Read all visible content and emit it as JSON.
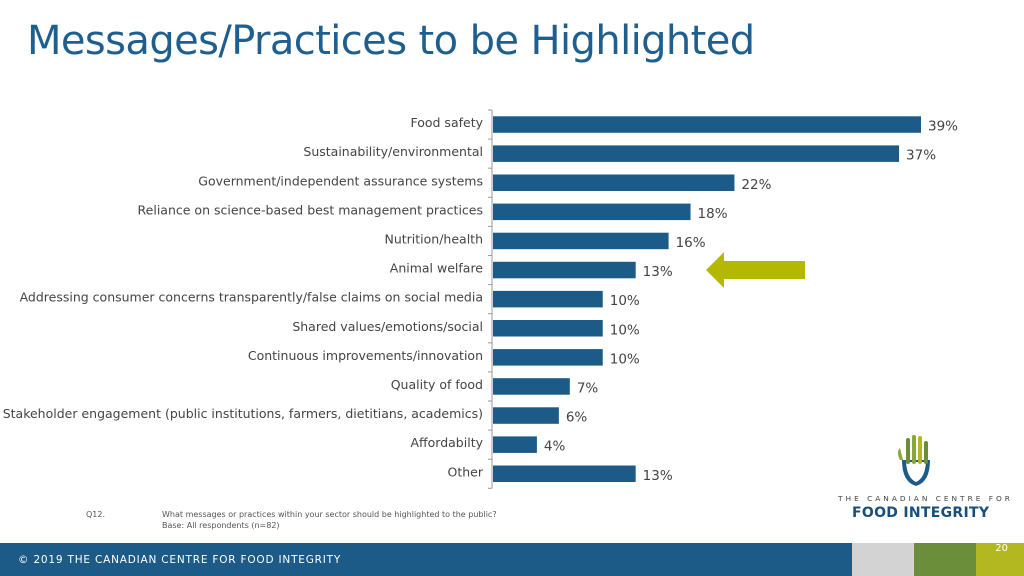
{
  "slide": {
    "title": "Messages/Practices to be Highlighted",
    "footnote": {
      "question_id": "Q12.",
      "question": "What messages or practices within your sector should be highlighted to the public?",
      "base": "Base: All respondents  (n=82)"
    },
    "footer_text": "© 2019 THE CANADIAN CENTRE FOR FOOD INTEGRITY",
    "page_number": "20",
    "logo": {
      "line1": "THE CANADIAN CENTRE FOR",
      "line2": "FOOD INTEGRITY"
    },
    "colors": {
      "bar": "#1c5a88",
      "title": "#1f5f8f",
      "arrow": "#b5b800",
      "footer": "#1c5a88",
      "band_light": "#d3d3d3",
      "band_green": "#6b8e3a",
      "band_lime": "#b4b820"
    }
  },
  "chart_data": {
    "type": "bar",
    "orientation": "horizontal",
    "title": "",
    "xlabel": "",
    "ylabel": "",
    "xlim": [
      0,
      40
    ],
    "grid": false,
    "legend": "none",
    "unit": "%",
    "categories": [
      "Food safety",
      "Sustainability/environmental",
      "Government/independent assurance systems",
      "Reliance on science-based best management practices",
      "Nutrition/health",
      "Animal welfare",
      "Addressing consumer concerns transparently/false claims on social media",
      "Shared values/emotions/social",
      "Continuous improvements/innovation",
      "Quality of food",
      "Stakeholder engagement (public institutions, farmers, dietitians, academics)",
      "Affordabilty",
      "Other"
    ],
    "values": [
      39,
      37,
      22,
      18,
      16,
      13,
      10,
      10,
      10,
      7,
      6,
      4,
      13
    ],
    "value_labels": [
      "39%",
      "37%",
      "22%",
      "18%",
      "16%",
      "13%",
      "10%",
      "10%",
      "10%",
      "7%",
      "6%",
      "4%",
      "13%"
    ],
    "highlighted_category": "Animal welfare"
  }
}
